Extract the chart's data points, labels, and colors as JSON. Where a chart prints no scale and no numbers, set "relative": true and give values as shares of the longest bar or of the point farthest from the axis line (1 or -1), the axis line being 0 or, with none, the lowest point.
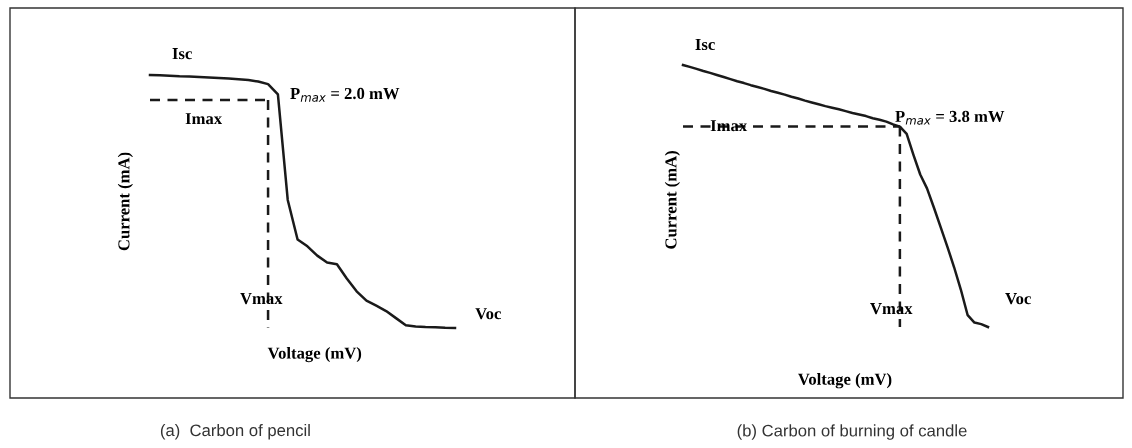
{
  "chart_data": [
    {
      "type": "line",
      "relative": true,
      "title": "(a)  Carbon of pencil",
      "xlabel": "Voltage (mV)",
      "ylabel": "Current (mA)",
      "categories": [
        null,
        null,
        null,
        null,
        null,
        null,
        null,
        null,
        null,
        null,
        null,
        null,
        null,
        null,
        null,
        null,
        null,
        null,
        null,
        null,
        null,
        null,
        null,
        null,
        null,
        null,
        null,
        null,
        null,
        null,
        null,
        null
      ],
      "series": [
        {
          "color": "#1a1a1a",
          "line_style": "solid",
          "values": [
            1.0,
            0.999,
            0.997,
            0.995,
            0.994,
            0.992,
            0.99,
            0.988,
            0.986,
            0.983,
            0.98,
            0.974,
            0.964,
            0.923,
            0.506,
            0.35,
            0.323,
            0.286,
            0.259,
            0.252,
            0.196,
            0.145,
            0.108,
            0.088,
            0.067,
            0.039,
            0.011,
            0.006,
            0.004,
            0.003,
            0.001,
            0.0
          ]
        },
        {
          "color": "#1a1a1a",
          "line_style": "dashed",
          "values": [
            0.901,
            0.901,
            0.901,
            0.901,
            0.901,
            0.901,
            0.901,
            0.901,
            0.901,
            0.901,
            0.901,
            0.901,
            0.901,
            null,
            null,
            null,
            null,
            null,
            null,
            null,
            null,
            null,
            null,
            null,
            null,
            null,
            null,
            null,
            null,
            null,
            null,
            null
          ]
        }
      ],
      "annotations": [
        "Isc",
        "Imax",
        "P$_{max}$ = 2.0 mW",
        "Vmax",
        "Voc"
      ]
    },
    {
      "type": "line",
      "relative": true,
      "title": "(b) Carbon of burning of candle",
      "xlabel": "Voltage (mV)",
      "ylabel": "Current (mA)",
      "categories": [
        null,
        null,
        null,
        null,
        null,
        null,
        null,
        null,
        null,
        null,
        null,
        null,
        null,
        null,
        null,
        null,
        null,
        null,
        null,
        null,
        null,
        null,
        null,
        null,
        null,
        null,
        null,
        null,
        null,
        null,
        null,
        null,
        null,
        null,
        null,
        null,
        null,
        null,
        null,
        null,
        null,
        null,
        null,
        null,
        null,
        null
      ],
      "series": [
        {
          "color": "#1a1a1a",
          "line_style": "solid",
          "values": [
            1.0,
            0.993,
            0.985,
            0.977,
            0.97,
            0.962,
            0.954,
            0.946,
            0.938,
            0.931,
            0.923,
            0.916,
            0.909,
            0.901,
            0.894,
            0.887,
            0.879,
            0.872,
            0.864,
            0.857,
            0.85,
            0.843,
            0.837,
            0.831,
            0.824,
            0.817,
            0.811,
            0.805,
            0.797,
            0.791,
            0.784,
            0.773,
            0.765,
            0.737,
            0.657,
            0.582,
            0.529,
            0.457,
            0.382,
            0.307,
            0.228,
            0.142,
            0.045,
            0.017,
            0.011,
            0.0
          ]
        },
        {
          "color": "#1a1a1a",
          "line_style": "dashed",
          "values": [
            0.765,
            0.765,
            0.765,
            0.765,
            0.765,
            0.765,
            0.765,
            0.765,
            0.765,
            0.765,
            0.765,
            0.765,
            0.765,
            0.765,
            0.765,
            0.765,
            0.765,
            0.765,
            0.765,
            0.765,
            0.765,
            0.765,
            0.765,
            0.765,
            0.765,
            0.765,
            0.765,
            0.765,
            0.765,
            0.765,
            0.765,
            0.765,
            0.765,
            null,
            null,
            null,
            null,
            null,
            null,
            null,
            null,
            null,
            null,
            null,
            null,
            null
          ]
        }
      ],
      "annotations": [
        "Isc",
        "Imax",
        "P$_{max}$ = 3.8 mW",
        "Vmax",
        "Voc"
      ]
    }
  ]
}
